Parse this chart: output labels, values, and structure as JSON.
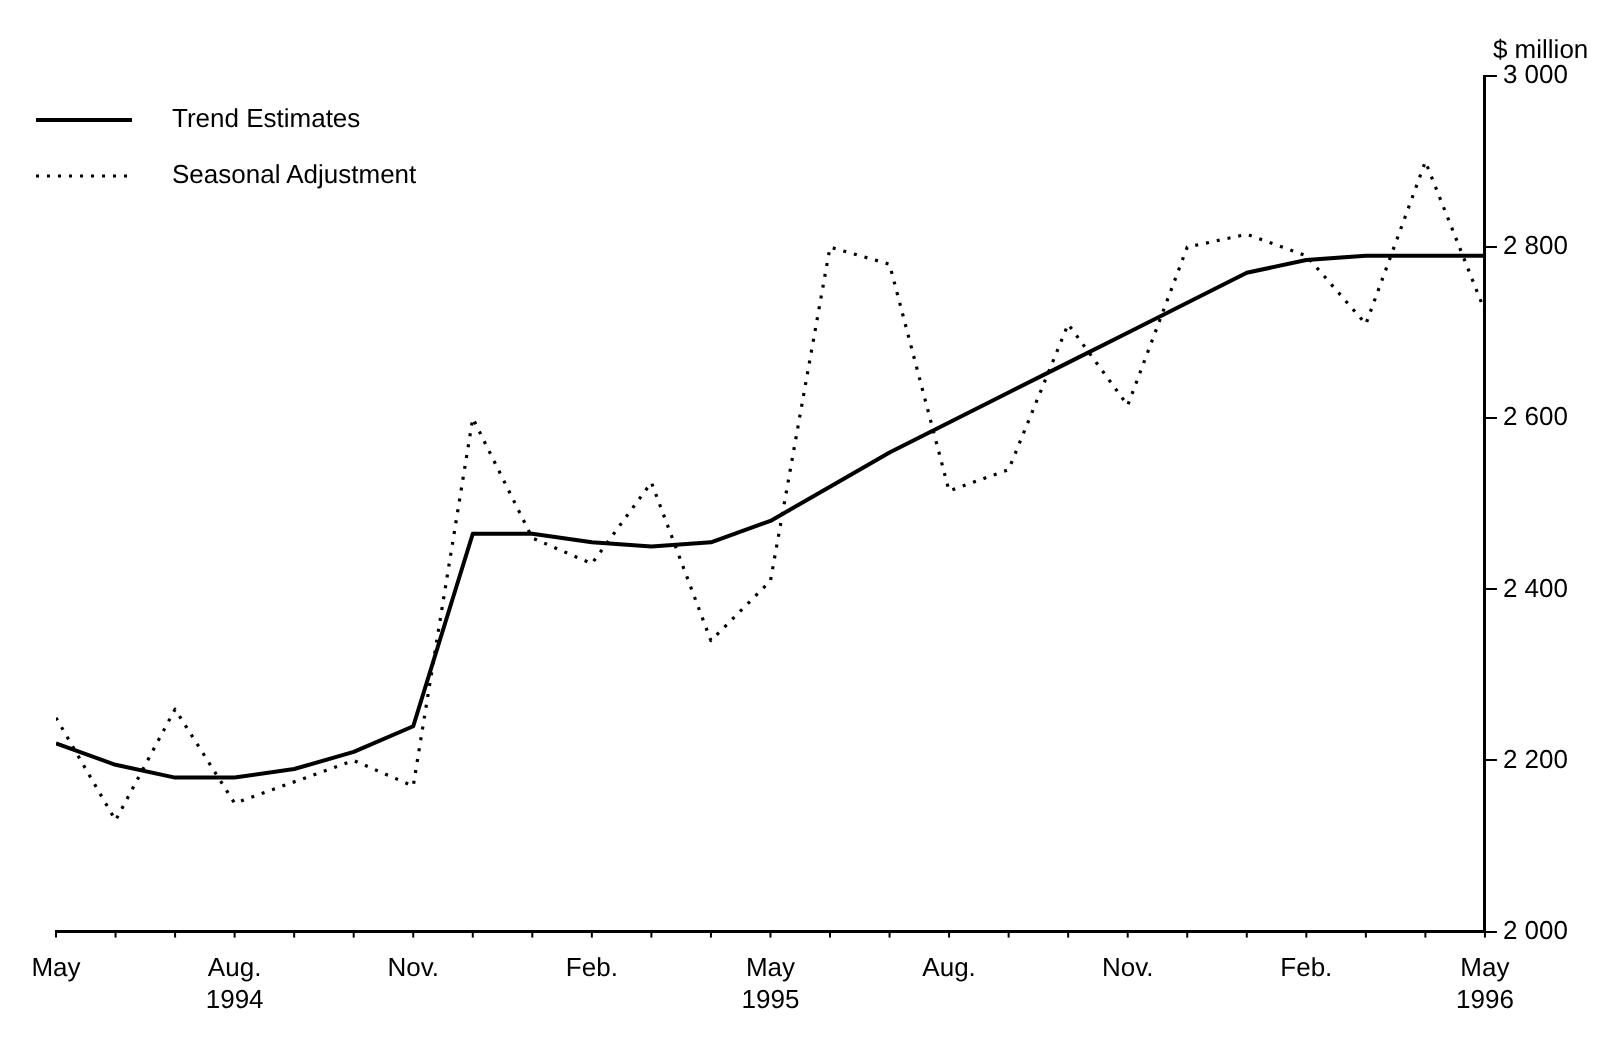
{
  "chart_data": {
    "type": "line",
    "ylabel": "$ million",
    "x": [
      "1994-05",
      "1994-06",
      "1994-07",
      "1994-08",
      "1994-09",
      "1994-10",
      "1994-11",
      "1994-12",
      "1995-01",
      "1995-02",
      "1995-03",
      "1995-04",
      "1995-05",
      "1995-06",
      "1995-07",
      "1995-08",
      "1995-09",
      "1995-10",
      "1995-11",
      "1995-12",
      "1996-01",
      "1996-02",
      "1996-03",
      "1996-04",
      "1996-05"
    ],
    "series": [
      {
        "name": "Trend Estimates",
        "color": "#000000",
        "line_style": "solid",
        "values": [
          2220,
          2195,
          2180,
          2180,
          2190,
          2210,
          2240,
          2465,
          2465,
          2455,
          2450,
          2455,
          2480,
          2520,
          2560,
          2595,
          2630,
          2665,
          2700,
          2735,
          2770,
          2785,
          2790,
          2790,
          2790
        ]
      },
      {
        "name": "Seasonal Adjustment",
        "color": "#000000",
        "line_style": "dotted",
        "values": [
          2250,
          2130,
          2260,
          2150,
          2175,
          2200,
          2170,
          2600,
          2460,
          2430,
          2525,
          2340,
          2410,
          2800,
          2780,
          2515,
          2540,
          2710,
          2615,
          2800,
          2815,
          2790,
          2710,
          2900,
          2725
        ]
      }
    ],
    "xlim": [
      "1994-05",
      "1996-05"
    ],
    "xticks": [
      {
        "value": "1994-05",
        "label": "May"
      },
      {
        "value": "1994-08",
        "label": "Aug.\n1994"
      },
      {
        "value": "1994-11",
        "label": "Nov."
      },
      {
        "value": "1995-02",
        "label": "Feb."
      },
      {
        "value": "1995-05",
        "label": "May\n1995"
      },
      {
        "value": "1995-08",
        "label": "Aug."
      },
      {
        "value": "1995-11",
        "label": "Nov."
      },
      {
        "value": "1996-02",
        "label": "Feb."
      },
      {
        "value": "1996-05",
        "label": "May\n1996"
      }
    ],
    "ylim": [
      2000,
      3000
    ],
    "yticks": [
      {
        "value": 2000,
        "label": "2 000"
      },
      {
        "value": 2200,
        "label": "2 200"
      },
      {
        "value": 2400,
        "label": "2 400"
      },
      {
        "value": 2600,
        "label": "2 600"
      },
      {
        "value": 2800,
        "label": "2 800"
      },
      {
        "value": 3000,
        "label": "3 000"
      }
    ],
    "grid": false,
    "legend": "top left",
    "marker": "none"
  }
}
